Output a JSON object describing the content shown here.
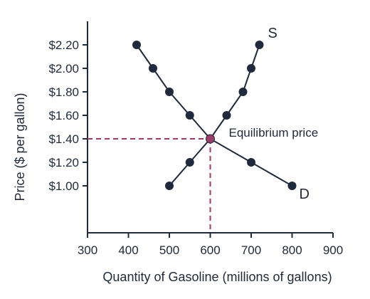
{
  "colors": {
    "series": "#1f2a3d",
    "guide": "#9b3b67",
    "equilibrium_point": "#9b3b67",
    "axis": "#1f2a3d"
  },
  "chart_data": {
    "type": "line",
    "title": "",
    "xlabel": "Quantity of Gasoline (millions of gallons)",
    "ylabel": "Price ($ per gallon)",
    "xlim": [
      300,
      900
    ],
    "ylim": [
      0.6,
      2.4
    ],
    "x_ticks": [
      300,
      400,
      500,
      600,
      700,
      800,
      900
    ],
    "x_tick_labels": [
      "300",
      "400",
      "500",
      "600",
      "700",
      "800",
      "900"
    ],
    "y_ticks": [
      1.0,
      1.2,
      1.4,
      1.6,
      1.8,
      2.0,
      2.2
    ],
    "y_tick_labels": [
      "$1.00",
      "$1.20",
      "$1.40",
      "$1.60",
      "$1.80",
      "$2.00",
      "$2.20"
    ],
    "grid": false,
    "legend": "none",
    "series": [
      {
        "name": "S",
        "x": [
          500,
          550,
          600,
          640,
          680,
          700,
          720
        ],
        "y": [
          1.0,
          1.2,
          1.4,
          1.6,
          1.8,
          2.0,
          2.2
        ]
      },
      {
        "name": "D",
        "x": [
          420,
          460,
          500,
          550,
          600,
          700,
          800
        ],
        "y": [
          2.2,
          2.0,
          1.8,
          1.6,
          1.4,
          1.2,
          1.0
        ]
      }
    ],
    "equilibrium": {
      "x": 600,
      "y": 1.4,
      "label": "Equilibrium price"
    }
  }
}
